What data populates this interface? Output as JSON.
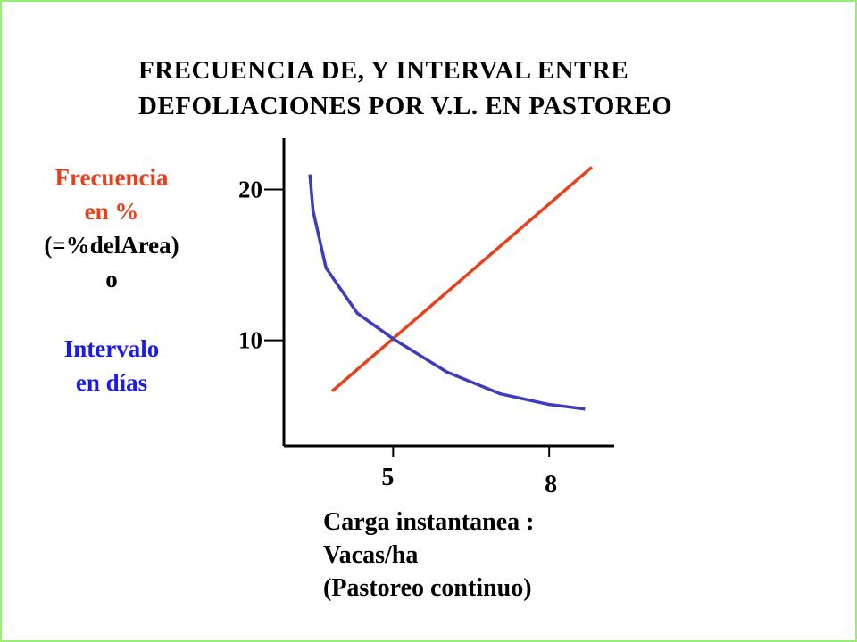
{
  "chart_data": {
    "type": "line",
    "title_lines": [
      "FRECUENCIA DE, Y INTERVAL ENTRE",
      "DEFOLIACIONES POR V.L. EN PASTOREO"
    ],
    "y_label": [
      {
        "text": "Frecuencia",
        "color": "#e8401c"
      },
      {
        "text": "en  %",
        "color": "#e8401c"
      },
      {
        "text": "(=%delArea)",
        "color": "#000000"
      },
      {
        "text": "o",
        "color": "#000000"
      },
      {
        "text": "Intervalo",
        "color": "#1a1aee"
      },
      {
        "text": "en  días",
        "color": "#1a1aee"
      }
    ],
    "x_label_lines": [
      "Carga instantanea :",
      "Vacas/ha",
      "(Pastoreo continuo)"
    ],
    "series": [
      {
        "color": "#e8401c",
        "x": [
          3.83,
          8.82
        ],
        "values": [
          6.63,
          21.48
        ]
      },
      {
        "color": "#3c3cc0",
        "x": [
          3.4,
          3.46,
          3.71,
          4.31,
          5.0,
          6.03,
          7.06,
          8.0,
          8.69
        ],
        "values": [
          21.0,
          18.6,
          14.8,
          11.8,
          10.1,
          7.9,
          6.45,
          5.74,
          5.44
        ]
      }
    ],
    "xlim": [
      2.9,
      9.25
    ],
    "ylim": [
      3,
      23.4
    ],
    "xticks": [
      5,
      8
    ],
    "yticks": [
      10,
      20
    ]
  }
}
